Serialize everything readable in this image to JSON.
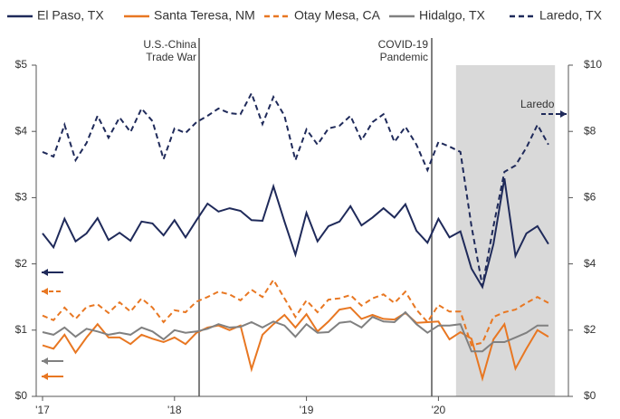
{
  "chart_data": {
    "type": "line",
    "categories": [
      "'17",
      null,
      null,
      null,
      null,
      null,
      null,
      null,
      null,
      null,
      null,
      null,
      "'18",
      null,
      null,
      null,
      null,
      null,
      null,
      null,
      null,
      null,
      null,
      null,
      "'19",
      null,
      null,
      null,
      null,
      null,
      null,
      null,
      null,
      null,
      null,
      null,
      "'20",
      null,
      null,
      null,
      null,
      null,
      null,
      null,
      null,
      null,
      null
    ],
    "ylim": [
      0,
      5
    ],
    "yticks": [
      {
        "value": 0,
        "label": "$0"
      },
      {
        "value": 1,
        "label": "$1"
      },
      {
        "value": 2,
        "label": "$2"
      },
      {
        "value": 3,
        "label": "$3"
      },
      {
        "value": 4,
        "label": "$4"
      },
      {
        "value": 5,
        "label": "$5"
      }
    ],
    "y2lim": [
      0,
      10
    ],
    "y2ticks": [
      {
        "value": 0,
        "label": "$0"
      },
      {
        "value": 2,
        "label": "$2"
      },
      {
        "value": 4,
        "label": "$4"
      },
      {
        "value": 6,
        "label": "$6"
      },
      {
        "value": 8,
        "label": "$8"
      },
      {
        "value": 10,
        "label": "$10"
      }
    ],
    "annotations": [
      [
        "U.S.-China",
        "Trade War"
      ],
      [
        "COVID-19",
        "Pandemic"
      ],
      [
        "Laredo"
      ]
    ],
    "series": [
      {
        "name": "El Paso, TX",
        "color": "#1f2a5a",
        "dash": false,
        "values": [
          2.46,
          2.25,
          2.68,
          2.34,
          2.46,
          2.69,
          2.36,
          2.47,
          2.35,
          2.64,
          2.61,
          2.43,
          2.66,
          2.4,
          2.66,
          2.91,
          2.79,
          2.84,
          2.8,
          2.66,
          2.65,
          3.17,
          2.64,
          2.14,
          2.77,
          2.34,
          2.57,
          2.64,
          2.87,
          2.58,
          2.7,
          2.84,
          2.7,
          2.9,
          2.5,
          2.32,
          2.68,
          2.4,
          2.49,
          1.93,
          1.65,
          2.3,
          3.29,
          2.12,
          2.46,
          2.57,
          2.3
        ]
      },
      {
        "name": "Santa Teresa, NM",
        "color": "#e87722",
        "dash": false,
        "values": [
          0.77,
          0.72,
          0.93,
          0.66,
          0.89,
          1.09,
          0.89,
          0.89,
          0.79,
          0.93,
          0.87,
          0.82,
          0.89,
          0.79,
          0.96,
          1.04,
          1.07,
          1.0,
          1.07,
          0.41,
          0.93,
          1.09,
          1.23,
          1.04,
          1.24,
          0.98,
          1.13,
          1.31,
          1.34,
          1.17,
          1.23,
          1.17,
          1.16,
          1.26,
          1.11,
          1.12,
          1.13,
          0.86,
          0.97,
          0.87,
          0.27,
          0.86,
          1.09,
          0.42,
          0.72,
          1.0,
          0.9
        ]
      },
      {
        "name": "Otay Mesa, CA",
        "color": "#e87722",
        "dash": true,
        "values": [
          1.22,
          1.15,
          1.34,
          1.17,
          1.35,
          1.39,
          1.26,
          1.42,
          1.28,
          1.48,
          1.34,
          1.12,
          1.3,
          1.27,
          1.43,
          1.5,
          1.58,
          1.54,
          1.45,
          1.61,
          1.5,
          1.76,
          1.48,
          1.2,
          1.45,
          1.27,
          1.46,
          1.48,
          1.53,
          1.37,
          1.48,
          1.54,
          1.41,
          1.58,
          1.31,
          1.12,
          1.38,
          1.28,
          1.28,
          0.77,
          0.81,
          1.2,
          1.27,
          1.31,
          1.41,
          1.5,
          1.41
        ]
      },
      {
        "name": "Hidalgo, TX",
        "color": "#808080",
        "dash": false,
        "values": [
          0.97,
          0.93,
          1.04,
          0.9,
          1.02,
          0.98,
          0.93,
          0.96,
          0.93,
          1.04,
          0.98,
          0.86,
          1.0,
          0.96,
          0.98,
          1.02,
          1.09,
          1.04,
          1.05,
          1.12,
          1.04,
          1.13,
          1.07,
          0.9,
          1.09,
          0.96,
          0.97,
          1.11,
          1.13,
          1.04,
          1.2,
          1.13,
          1.12,
          1.27,
          1.09,
          0.96,
          1.07,
          1.07,
          1.09,
          0.68,
          0.68,
          0.82,
          0.82,
          0.89,
          0.96,
          1.07,
          1.07
        ]
      },
      {
        "name": "Laredo, TX",
        "color": "#1f2a5a",
        "dash": true,
        "axis": "y2",
        "values": [
          7.38,
          7.24,
          8.2,
          7.13,
          7.65,
          8.47,
          7.81,
          8.42,
          7.98,
          8.69,
          8.31,
          7.16,
          8.09,
          7.95,
          8.28,
          8.47,
          8.69,
          8.55,
          8.52,
          9.15,
          8.22,
          9.04,
          8.47,
          7.13,
          8.06,
          7.6,
          8.09,
          8.17,
          8.47,
          7.73,
          8.28,
          8.52,
          7.68,
          8.14,
          7.6,
          6.83,
          7.68,
          7.54,
          7.38,
          5.14,
          3.33,
          5.14,
          6.78,
          6.97,
          7.51,
          8.2,
          7.6
        ]
      }
    ]
  }
}
